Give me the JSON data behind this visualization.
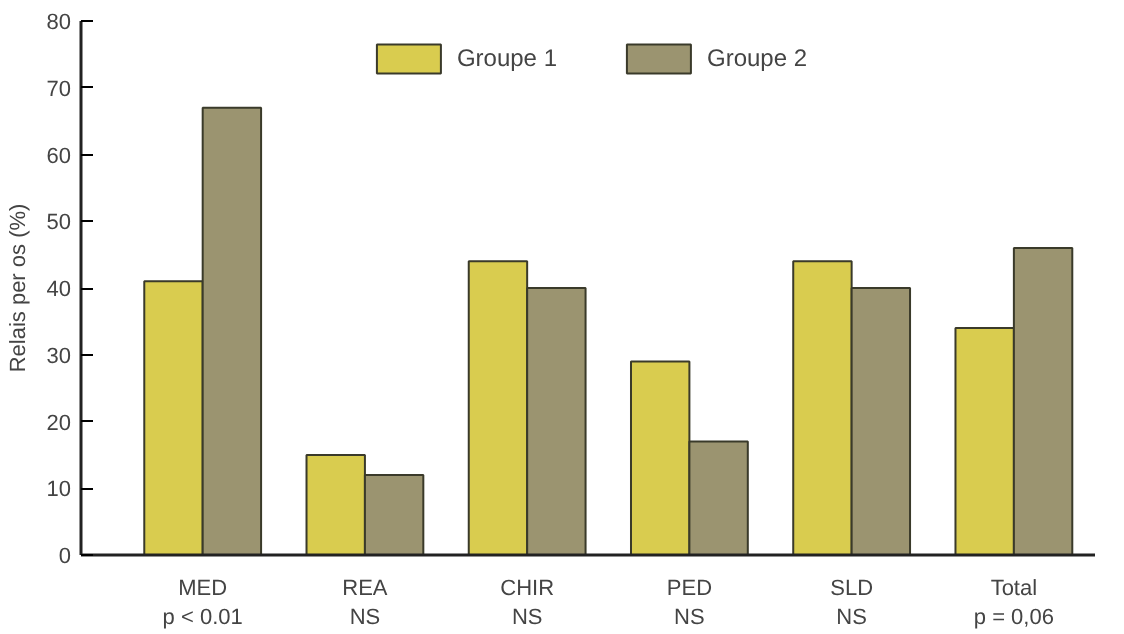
{
  "chart_data": {
    "type": "bar",
    "ylabel": "Relais per os (%)",
    "categories": [
      "MED\np < 0.01",
      "REA\nNS",
      "CHIR\nNS",
      "PED\nNS",
      "SLD\nNS",
      "Total\np = 0,06"
    ],
    "series": [
      {
        "name": "Groupe 1",
        "color": "#d9cc4f",
        "values": [
          41,
          15,
          44,
          29,
          44,
          34
        ]
      },
      {
        "name": "Groupe 2",
        "color": "#9b9470",
        "values": [
          67,
          12,
          40,
          17,
          40,
          46
        ]
      }
    ],
    "ylim": [
      0,
      80
    ],
    "yticks": [
      0,
      10,
      20,
      30,
      40,
      50,
      60,
      70,
      80
    ],
    "grid": false,
    "legend": "top"
  }
}
